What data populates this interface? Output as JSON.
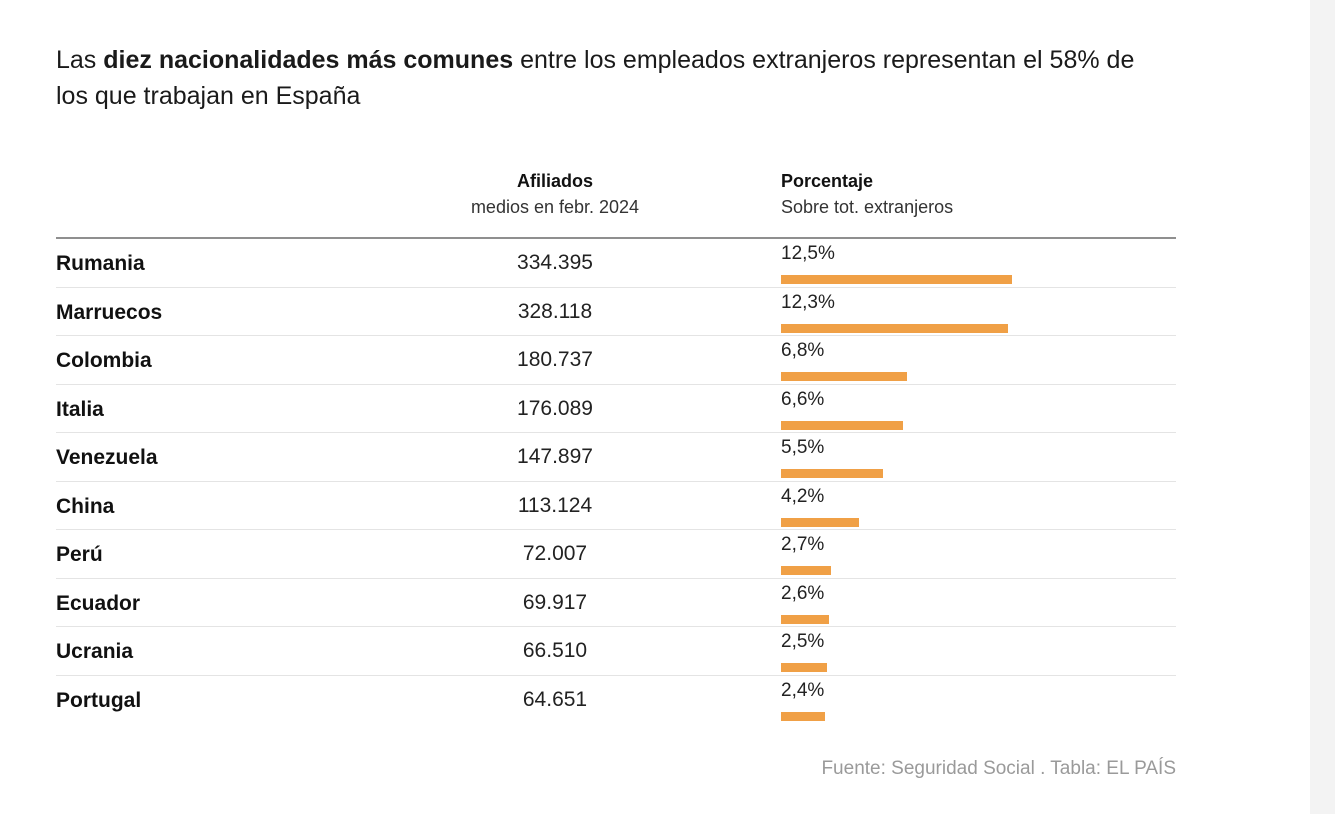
{
  "headline": {
    "part1": "Las ",
    "bold": "diez nacionalidades más comunes",
    "part2": " entre los empleados extranjeros representan el 58% de los que trabajan en España"
  },
  "columns": {
    "affiliates_title": "Afiliados",
    "affiliates_sub": "medios en febr. 2024",
    "percent_title": "Porcentaje",
    "percent_sub": "Sobre tot. extranjeros"
  },
  "bar_color": "#f0a046",
  "chart_data": {
    "type": "table",
    "xlim": [
      0,
      12.5
    ],
    "rows": [
      {
        "country": "Rumania",
        "affiliates": "334.395",
        "percent_label": "12,5%",
        "percent": 12.5
      },
      {
        "country": "Marruecos",
        "affiliates": "328.118",
        "percent_label": "12,3%",
        "percent": 12.3
      },
      {
        "country": "Colombia",
        "affiliates": "180.737",
        "percent_label": "6,8%",
        "percent": 6.8
      },
      {
        "country": "Italia",
        "affiliates": "176.089",
        "percent_label": "6,6%",
        "percent": 6.6
      },
      {
        "country": "Venezuela",
        "affiliates": "147.897",
        "percent_label": "5,5%",
        "percent": 5.5
      },
      {
        "country": "China",
        "affiliates": "113.124",
        "percent_label": "4,2%",
        "percent": 4.2
      },
      {
        "country": "Perú",
        "affiliates": "72.007",
        "percent_label": "2,7%",
        "percent": 2.7
      },
      {
        "country": "Ecuador",
        "affiliates": "69.917",
        "percent_label": "2,6%",
        "percent": 2.6
      },
      {
        "country": "Ucrania",
        "affiliates": "66.510",
        "percent_label": "2,5%",
        "percent": 2.5
      },
      {
        "country": "Portugal",
        "affiliates": "64.651",
        "percent_label": "2,4%",
        "percent": 2.4
      }
    ]
  },
  "source": "Fuente: Seguridad Social . Tabla: EL PAÍS"
}
